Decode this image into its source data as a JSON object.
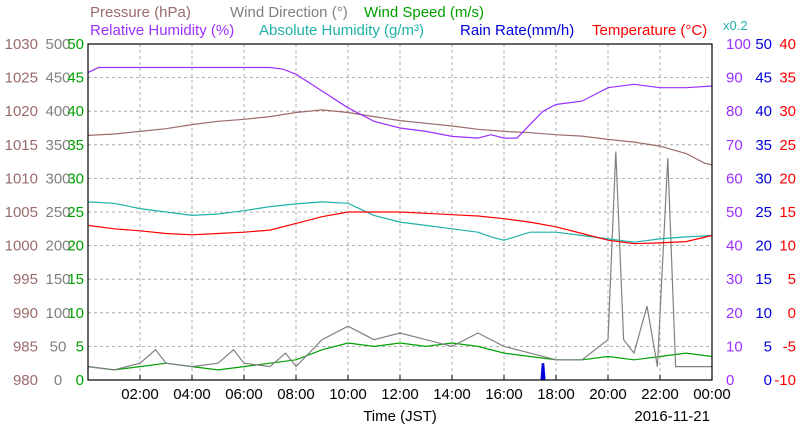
{
  "chart_data": {
    "type": "line",
    "date": "2016-11-21",
    "x_axis": {
      "label": "Time (JST)",
      "ticks": [
        "02:00",
        "04:00",
        "06:00",
        "08:00",
        "10:00",
        "12:00",
        "14:00",
        "16:00",
        "18:00",
        "20:00",
        "22:00",
        "00:00"
      ],
      "range_hours": [
        0,
        24
      ]
    },
    "header": {
      "pressure": "Pressure (hPa)",
      "wind_direction": "Wind Direction (°)",
      "wind_speed": "Wind Speed (m/s)",
      "relative_humidity": "Relative Humidity (%)",
      "absolute_humidity": "Absolute Humidity (g/m³)",
      "rain_rate": "Rain Rate(mm/h)",
      "temperature": "Temperature (°C)",
      "multiplier": "x0.2"
    },
    "axes": {
      "pressure": {
        "ticks": [
          "1030",
          "1025",
          "1020",
          "1015",
          "1010",
          "1005",
          "1000",
          "995",
          "990",
          "985",
          "980"
        ],
        "range": [
          980,
          1030
        ],
        "color": "#9c6b6b"
      },
      "wind_direction": {
        "ticks": [
          "500",
          "450",
          "400",
          "350",
          "300",
          "250",
          "200",
          "150",
          "100",
          "50",
          "0"
        ],
        "range": [
          0,
          500
        ],
        "color": "#808080"
      },
      "wind_speed": {
        "ticks": [
          "50",
          "45",
          "40",
          "35",
          "30",
          "25",
          "20",
          "15",
          "10",
          "5",
          "0"
        ],
        "range": [
          0,
          50
        ],
        "color": "#00a000"
      },
      "relative_humidity": {
        "ticks": [
          "100",
          "90",
          "80",
          "70",
          "60",
          "50",
          "40",
          "30",
          "20",
          "10",
          "0"
        ],
        "range": [
          0,
          100
        ],
        "color": "#9b30ff"
      },
      "rain_rate": {
        "ticks": [
          "50",
          "45",
          "40",
          "35",
          "30",
          "25",
          "20",
          "15",
          "10",
          "5",
          "0"
        ],
        "range": [
          0,
          50
        ],
        "color": "#0000dd"
      },
      "temperature": {
        "ticks": [
          "40",
          "35",
          "30",
          "25",
          "20",
          "15",
          "10",
          "5",
          "0",
          "-5",
          "-10"
        ],
        "range": [
          -10,
          40
        ],
        "color": "#ff0000"
      }
    },
    "series": [
      {
        "name": "Pressure",
        "unit": "hPa",
        "color": "#9c6b6b",
        "axis": "pressure",
        "points": [
          [
            0,
            1016.4
          ],
          [
            1,
            1016.6
          ],
          [
            2,
            1017
          ],
          [
            3,
            1017.4
          ],
          [
            4,
            1018
          ],
          [
            5,
            1018.5
          ],
          [
            6,
            1018.8
          ],
          [
            7,
            1019.2
          ],
          [
            8,
            1019.8
          ],
          [
            9,
            1020.2
          ],
          [
            10,
            1019.8
          ],
          [
            11,
            1019.2
          ],
          [
            12,
            1018.6
          ],
          [
            13,
            1018.2
          ],
          [
            14,
            1017.8
          ],
          [
            15,
            1017.3
          ],
          [
            16,
            1017
          ],
          [
            17,
            1016.8
          ],
          [
            18,
            1016.5
          ],
          [
            19,
            1016.3
          ],
          [
            20,
            1015.8
          ],
          [
            21,
            1015.4
          ],
          [
            22,
            1014.8
          ],
          [
            23,
            1013.7
          ],
          [
            23.7,
            1012.3
          ],
          [
            24,
            1012
          ]
        ]
      },
      {
        "name": "Relative Humidity",
        "unit": "%",
        "color": "#9b30ff",
        "axis": "relative_humidity",
        "points": [
          [
            0,
            91.5
          ],
          [
            0.4,
            93
          ],
          [
            2,
            93
          ],
          [
            4,
            93
          ],
          [
            6,
            93
          ],
          [
            7,
            93
          ],
          [
            7.5,
            92.5
          ],
          [
            8,
            91
          ],
          [
            9,
            86
          ],
          [
            10,
            81
          ],
          [
            11,
            77
          ],
          [
            12,
            75
          ],
          [
            13,
            74
          ],
          [
            14,
            72.5
          ],
          [
            15,
            72
          ],
          [
            15.5,
            73
          ],
          [
            16,
            72
          ],
          [
            16.5,
            72
          ],
          [
            17,
            76
          ],
          [
            17.5,
            80
          ],
          [
            18,
            82
          ],
          [
            19,
            83
          ],
          [
            20,
            87
          ],
          [
            21,
            88
          ],
          [
            22,
            87
          ],
          [
            23,
            87
          ],
          [
            24,
            87.5
          ]
        ]
      },
      {
        "name": "Absolute Humidity",
        "unit": "g/m3",
        "color": "#20b2aa",
        "axis": "temperature",
        "points": [
          [
            0,
            16.5
          ],
          [
            1,
            16.3
          ],
          [
            2,
            15.5
          ],
          [
            3,
            15
          ],
          [
            4,
            14.5
          ],
          [
            5,
            14.7
          ],
          [
            6,
            15.2
          ],
          [
            7,
            15.8
          ],
          [
            8,
            16.2
          ],
          [
            9,
            16.5
          ],
          [
            10,
            16.3
          ],
          [
            11,
            14.5
          ],
          [
            12,
            13.5
          ],
          [
            13,
            13
          ],
          [
            14,
            12.5
          ],
          [
            15,
            12
          ],
          [
            15.5,
            11.3
          ],
          [
            16,
            10.8
          ],
          [
            17,
            12
          ],
          [
            18,
            12
          ],
          [
            19,
            11.5
          ],
          [
            20,
            11
          ],
          [
            21,
            10.5
          ],
          [
            22,
            11
          ],
          [
            23,
            11.3
          ],
          [
            24,
            11.5
          ]
        ]
      },
      {
        "name": "Temperature",
        "unit": "°C",
        "color": "#ff0000",
        "axis": "temperature",
        "points": [
          [
            0,
            13
          ],
          [
            1,
            12.5
          ],
          [
            2,
            12.2
          ],
          [
            3,
            11.8
          ],
          [
            4,
            11.6
          ],
          [
            5,
            11.8
          ],
          [
            6,
            12
          ],
          [
            7,
            12.3
          ],
          [
            8,
            13.3
          ],
          [
            9,
            14.3
          ],
          [
            10,
            15
          ],
          [
            11,
            15
          ],
          [
            12,
            15
          ],
          [
            13,
            14.8
          ],
          [
            14,
            14.6
          ],
          [
            15,
            14.4
          ],
          [
            16,
            14
          ],
          [
            17,
            13.5
          ],
          [
            18,
            12.8
          ],
          [
            19,
            11.8
          ],
          [
            20,
            10.8
          ],
          [
            21,
            10.3
          ],
          [
            22,
            10.4
          ],
          [
            23,
            10.6
          ],
          [
            24,
            11.5
          ]
        ]
      },
      {
        "name": "Wind Direction",
        "unit": "°",
        "color": "#808080",
        "axis": "wind_direction",
        "points": [
          [
            0,
            20
          ],
          [
            1,
            15
          ],
          [
            2,
            25
          ],
          [
            2.6,
            45
          ],
          [
            3,
            25
          ],
          [
            4,
            20
          ],
          [
            5,
            25
          ],
          [
            5.6,
            45
          ],
          [
            6,
            25
          ],
          [
            7,
            20
          ],
          [
            7.6,
            40
          ],
          [
            8,
            20
          ],
          [
            9,
            60
          ],
          [
            10,
            80
          ],
          [
            11,
            60
          ],
          [
            12,
            70
          ],
          [
            13,
            60
          ],
          [
            14,
            50
          ],
          [
            15,
            70
          ],
          [
            16,
            50
          ],
          [
            17,
            40
          ],
          [
            18,
            30
          ],
          [
            19,
            30
          ],
          [
            20,
            60
          ],
          [
            20.3,
            340
          ],
          [
            20.6,
            60
          ],
          [
            21,
            40
          ],
          [
            21.5,
            110
          ],
          [
            21.9,
            20
          ],
          [
            22.3,
            330
          ],
          [
            22.6,
            20
          ],
          [
            23,
            20
          ],
          [
            24,
            20
          ]
        ]
      },
      {
        "name": "Wind Speed",
        "unit": "m/s",
        "color": "#00a000",
        "axis": "wind_speed",
        "points": [
          [
            0,
            2
          ],
          [
            1,
            1.5
          ],
          [
            2,
            2
          ],
          [
            3,
            2.5
          ],
          [
            4,
            2
          ],
          [
            5,
            1.5
          ],
          [
            6,
            2
          ],
          [
            7,
            2.5
          ],
          [
            8,
            3
          ],
          [
            9,
            4.5
          ],
          [
            10,
            5.5
          ],
          [
            11,
            5
          ],
          [
            12,
            5.5
          ],
          [
            13,
            5
          ],
          [
            14,
            5.5
          ],
          [
            15,
            5
          ],
          [
            16,
            4
          ],
          [
            17,
            3.5
          ],
          [
            18,
            3
          ],
          [
            19,
            3
          ],
          [
            20,
            3.5
          ],
          [
            21,
            3
          ],
          [
            22,
            3.5
          ],
          [
            23,
            4
          ],
          [
            24,
            3.5
          ]
        ]
      },
      {
        "name": "Rain Rate",
        "unit": "mm/h",
        "color": "#0000dd",
        "axis": "rain_rate",
        "points": [
          [
            17.45,
            0
          ],
          [
            17.5,
            2.5
          ],
          [
            17.55,
            0
          ]
        ]
      }
    ],
    "grid": true
  }
}
